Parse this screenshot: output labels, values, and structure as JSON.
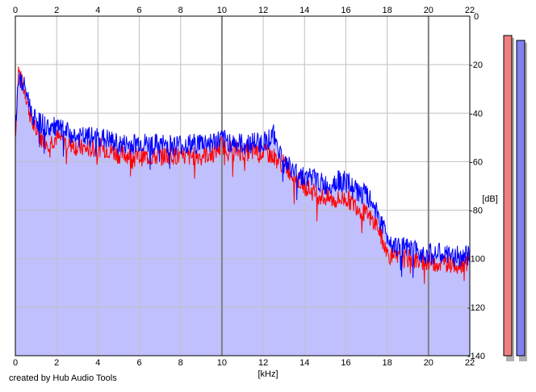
{
  "footer": {
    "credit": "created by Hub Audio Tools"
  },
  "colors": {
    "left_channel": "#ff0000",
    "right_channel": "#0000ff",
    "fill": "#c0c0ff",
    "grid_minor": "#c0c0c0",
    "grid_major": "#808080",
    "meter_left": "#f08080",
    "meter_right": "#8080f0"
  },
  "chart_data": {
    "type": "line",
    "title": "",
    "xlabel": "[kHz]",
    "ylabel": "[dB]",
    "xlim": [
      0,
      22
    ],
    "ylim": [
      -140,
      0
    ],
    "x_ticks": [
      0,
      2,
      4,
      6,
      8,
      10,
      12,
      14,
      16,
      18,
      20,
      22
    ],
    "y_ticks": [
      0,
      -20,
      -40,
      -60,
      -80,
      -100,
      -120,
      -140
    ],
    "grid": true,
    "series": [
      {
        "color": "#ff0000",
        "x": [
          0,
          0.15,
          0.3,
          0.5,
          0.8,
          1.2,
          1.6,
          2,
          2.5,
          3,
          3.5,
          4,
          4.5,
          5,
          5.5,
          6,
          6.5,
          7,
          7.5,
          8,
          8.5,
          9,
          9.5,
          10,
          10.5,
          11,
          11.5,
          12,
          12.5,
          13,
          13.5,
          14,
          14.5,
          15,
          15.5,
          16,
          16.5,
          17,
          17.5,
          18,
          18.5,
          19,
          19.5,
          20,
          20.5,
          21,
          21.5,
          22
        ],
        "values": [
          -50,
          -22,
          -27,
          -32,
          -44,
          -50,
          -52,
          -50,
          -52,
          -54,
          -55,
          -54,
          -55,
          -57,
          -57,
          -58,
          -58,
          -58,
          -57,
          -58,
          -58,
          -57,
          -57,
          -53,
          -55,
          -56,
          -56,
          -56,
          -58,
          -61,
          -66,
          -70,
          -73,
          -75,
          -76,
          -75,
          -78,
          -82,
          -86,
          -98,
          -100,
          -100,
          -101,
          -101,
          -102,
          -101,
          -102,
          -101
        ]
      },
      {
        "color": "#0000ff",
        "x": [
          0,
          0.15,
          0.3,
          0.5,
          0.8,
          1.2,
          1.6,
          2,
          2.5,
          3,
          3.5,
          4,
          4.5,
          5,
          5.5,
          6,
          6.5,
          7,
          7.5,
          8,
          8.5,
          9,
          9.5,
          10,
          10.5,
          11,
          11.5,
          12,
          12.5,
          13,
          13.5,
          14,
          14.5,
          15,
          15.5,
          16,
          16.5,
          17,
          17.5,
          18,
          18.5,
          19,
          19.5,
          20,
          20.5,
          21,
          21.5,
          22
        ],
        "values": [
          -47,
          -25,
          -28,
          -30,
          -40,
          -44,
          -46,
          -46,
          -48,
          -50,
          -50,
          -50,
          -51,
          -53,
          -53,
          -52,
          -53,
          -53,
          -53,
          -53,
          -53,
          -52,
          -52,
          -51,
          -52,
          -53,
          -52,
          -52,
          -49,
          -60,
          -64,
          -66,
          -67,
          -70,
          -68,
          -68,
          -72,
          -74,
          -80,
          -91,
          -95,
          -96,
          -97,
          -98,
          -98,
          -99,
          -99,
          -99
        ]
      }
    ],
    "right_axis_label": "[dB]",
    "meters": [
      {
        "channel": "left",
        "level_db": -8
      },
      {
        "channel": "right",
        "level_db": -10
      }
    ]
  }
}
